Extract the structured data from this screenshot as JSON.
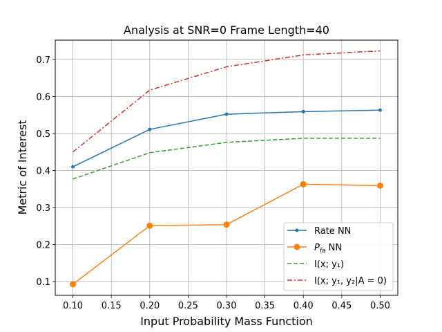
{
  "chart_data": {
    "type": "line",
    "title": "Analysis at SNR=0 Frame Length=40",
    "xlabel": "Input Probability Mass Function",
    "ylabel": "Metric of Interest",
    "x": [
      0.1,
      0.2,
      0.3,
      0.4,
      0.5
    ],
    "xlim": [
      0.077,
      0.523
    ],
    "ylim": [
      0.063,
      0.752
    ],
    "xticks": [
      0.1,
      0.15,
      0.2,
      0.25,
      0.3,
      0.35,
      0.4,
      0.45,
      0.5
    ],
    "xtick_labels": [
      "0.10",
      "0.15",
      "0.20",
      "0.25",
      "0.30",
      "0.35",
      "0.40",
      "0.45",
      "0.50"
    ],
    "yticks": [
      0.1,
      0.2,
      0.3,
      0.4,
      0.5,
      0.6,
      0.7
    ],
    "ytick_labels": [
      "0.1",
      "0.2",
      "0.3",
      "0.4",
      "0.5",
      "0.6",
      "0.7"
    ],
    "grid": true,
    "legend_position": "lower-right",
    "series": [
      {
        "name": "Rate NN",
        "values": [
          0.41,
          0.511,
          0.552,
          0.559,
          0.563
        ],
        "color": "#1f77b4",
        "style": "solid",
        "marker": "small-circle"
      },
      {
        "name_main": "P",
        "name_sub": "fa",
        "name_rest": " NN",
        "values": [
          0.093,
          0.251,
          0.254,
          0.363,
          0.359
        ],
        "color": "#ff7f0e",
        "style": "solid",
        "marker": "large-circle"
      },
      {
        "name": "I(x; y₁)",
        "values": [
          0.377,
          0.448,
          0.476,
          0.487,
          0.487
        ],
        "color": "#2ca02c",
        "style": "dashed",
        "marker": "none"
      },
      {
        "name": "I(x; y₁, y₂|A = 0)",
        "values": [
          0.45,
          0.617,
          0.68,
          0.712,
          0.723
        ],
        "color": "#d62728",
        "style": "dashdot",
        "marker": "none"
      }
    ]
  }
}
